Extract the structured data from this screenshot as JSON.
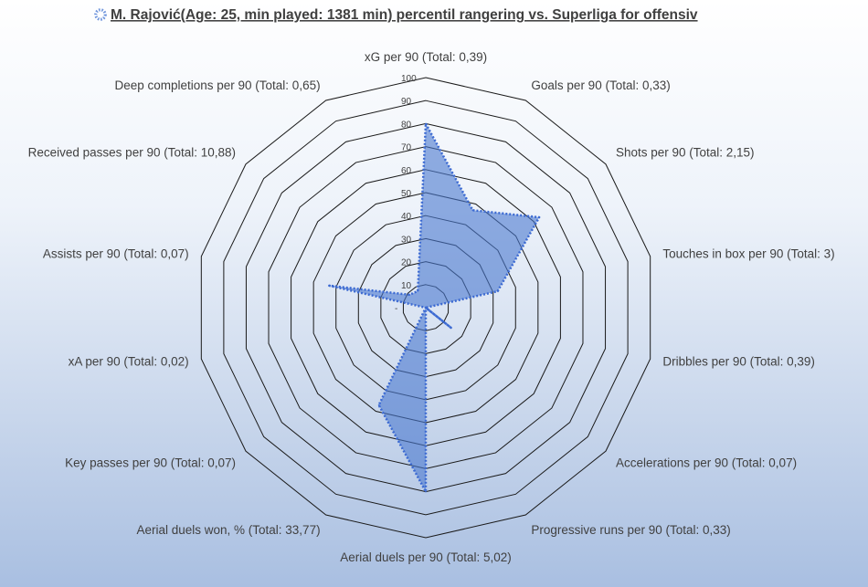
{
  "chart_data": {
    "type": "radar",
    "title": "M. Rajović(Age: 25, min played: 1381 min) percentil rangering vs. Superliga for offensiv",
    "legend_marker_color": "#6f95dc",
    "range": [
      0,
      100
    ],
    "ticks": [
      "-",
      "10",
      "20",
      "30",
      "40",
      "50",
      "60",
      "70",
      "80",
      "90",
      "100"
    ],
    "categories": [
      "xG per 90 (Total: 0,39)",
      "Goals per 90 (Total: 0,33)",
      "Shots per 90 (Total: 2,15)",
      "Touches in box per 90 (Total: 3)",
      "Dribbles per 90 (Total: 0,39)",
      "Accelerations per 90 (Total: 0,07)",
      "Progressive runs per 90 (Total: 0,33)",
      "Aerial duels per 90 (Total: 5,02)",
      "Aerial duels won, % (Total: 33,77)",
      "Key passes per 90 (Total: 0,07)",
      "xA per 90 (Total: 0,02)",
      "Assists per 90 (Total: 0,07)",
      "Received passes per 90 (Total: 10,88)",
      "Deep completions per 90 (Total: 0,65)"
    ],
    "series": [
      {
        "values": [
          80,
          47,
          63,
          32,
          0,
          14,
          0,
          80,
          47,
          0,
          0,
          43,
          9,
          8
        ],
        "fill_color": "#4a78cf",
        "line_color": "#3c6ad2"
      }
    ],
    "grid_color": "#1a1a1a"
  }
}
